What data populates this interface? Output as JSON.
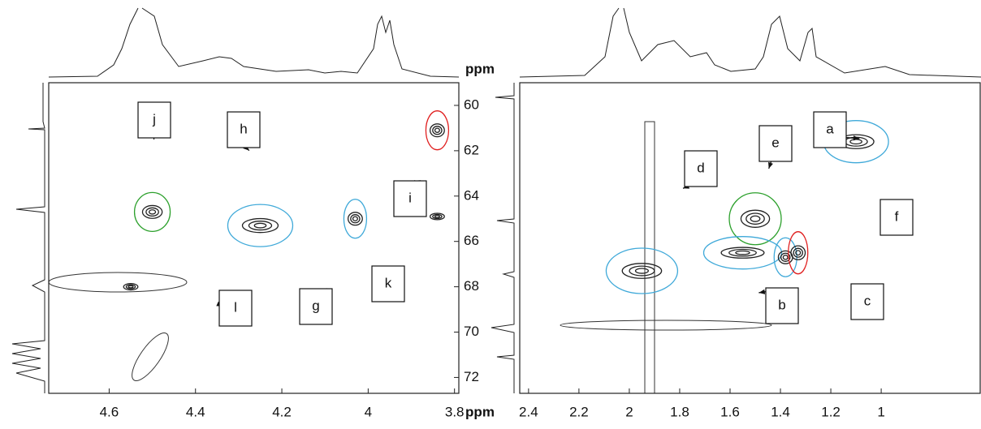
{
  "chart_data": [
    {
      "type": "contour",
      "xlabel": "ppm",
      "ylabel": "ppm",
      "xlim": [
        4.74,
        3.79
      ],
      "xticks": [
        4.6,
        4.4,
        4.2,
        4.0,
        3.8
      ],
      "ylim": [
        59.0,
        72.7
      ],
      "yticks": [
        60,
        62,
        64,
        66,
        68,
        70,
        72
      ],
      "peaks": [
        {
          "label": "j",
          "x": 4.5,
          "y": 64.7,
          "color": "#2ca02c"
        },
        {
          "label": "h",
          "x": 4.25,
          "y": 65.3,
          "color": "#3fa9d9"
        },
        {
          "label": "g",
          "x": 4.03,
          "y": 65.0,
          "color": "#3fa9d9"
        },
        {
          "label": "i",
          "x": 3.84,
          "y": 61.1,
          "color": "#e02020"
        },
        {
          "label": "k",
          "x": 3.84,
          "y": 64.9
        },
        {
          "label": "l",
          "x": 4.55,
          "y": 68.0
        }
      ]
    },
    {
      "type": "contour",
      "xlim": [
        2.435,
        0.607
      ],
      "xticks": [
        2.4,
        2.2,
        2.0,
        1.8,
        1.6,
        1.4,
        1.2,
        1.0
      ],
      "ylim": [
        59.0,
        72.7
      ],
      "peaks": [
        {
          "label": "a",
          "x": 1.1,
          "y": 61.6,
          "color": "#3fa9d9"
        },
        {
          "label": "e",
          "x": 1.5,
          "y": 65.0,
          "color": "#2ca02c"
        },
        {
          "label": "d",
          "x": 1.95,
          "y": 67.3,
          "color": "#3fa9d9"
        },
        {
          "label": "b",
          "x": 1.55,
          "y": 66.5,
          "color": "#3fa9d9"
        },
        {
          "label": "c",
          "x": 1.38,
          "y": 66.7,
          "color": "#3fa9d9"
        },
        {
          "label": "f",
          "x": 1.33,
          "y": 66.5,
          "color": "#e02020"
        }
      ]
    }
  ]
}
